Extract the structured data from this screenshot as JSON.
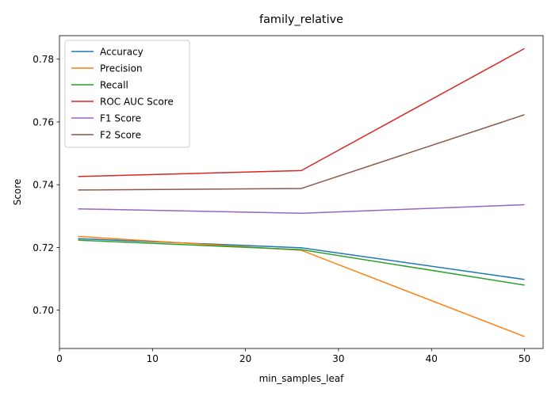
{
  "chart_data": {
    "type": "line",
    "title": "family_relative",
    "xlabel": "min_samples_leaf",
    "ylabel": "Score",
    "xlim": [
      0,
      52
    ],
    "ylim": [
      0.6878,
      0.7875
    ],
    "xticks": [
      0,
      10,
      20,
      30,
      40,
      50
    ],
    "yticks": [
      0.7,
      0.72,
      0.74,
      0.76,
      0.78
    ],
    "xtick_labels": [
      "0",
      "10",
      "20",
      "30",
      "40",
      "50"
    ],
    "ytick_labels": [
      "0.70",
      "0.72",
      "0.74",
      "0.76",
      "0.78"
    ],
    "grid": false,
    "legend_position": "top-left",
    "x": [
      2,
      26,
      50
    ],
    "series": [
      {
        "name": "Accuracy",
        "color": "#1f77b4",
        "values": [
          0.7228,
          0.7199,
          0.7098
        ]
      },
      {
        "name": "Precision",
        "color": "#ff7f0e",
        "values": [
          0.7235,
          0.7191,
          0.6916
        ]
      },
      {
        "name": "Recall",
        "color": "#2ca02c",
        "values": [
          0.7223,
          0.7193,
          0.708
        ]
      },
      {
        "name": "ROC AUC Score",
        "color": "#d62728",
        "values": [
          0.7426,
          0.7445,
          0.7834
        ]
      },
      {
        "name": "F1 Score",
        "color": "#9467bd",
        "values": [
          0.7323,
          0.7309,
          0.7336
        ]
      },
      {
        "name": "F2 Score",
        "color": "#8c564b",
        "values": [
          0.7383,
          0.7388,
          0.7623
        ]
      }
    ]
  }
}
